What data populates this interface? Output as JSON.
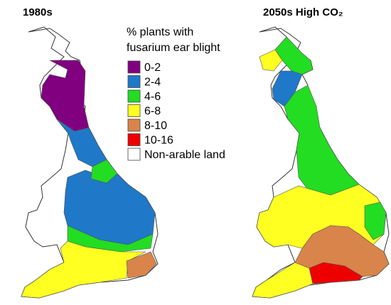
{
  "maps": [
    {
      "title": "1980s"
    },
    {
      "title": "2050s High CO₂"
    }
  ],
  "legend": {
    "title": [
      "% plants with",
      "fusarium ear blight"
    ],
    "items": [
      {
        "label": "0-2",
        "color": "#800080"
      },
      {
        "label": "2-4",
        "color": "#1f78c8"
      },
      {
        "label": "4-6",
        "color": "#22dd22"
      },
      {
        "label": "6-8",
        "color": "#ffff22"
      },
      {
        "label": "8-10",
        "color": "#d9844a"
      },
      {
        "label": "10-16",
        "color": "#ee0000"
      },
      {
        "label": "Non-arable land",
        "color": "#ffffff"
      }
    ]
  }
}
